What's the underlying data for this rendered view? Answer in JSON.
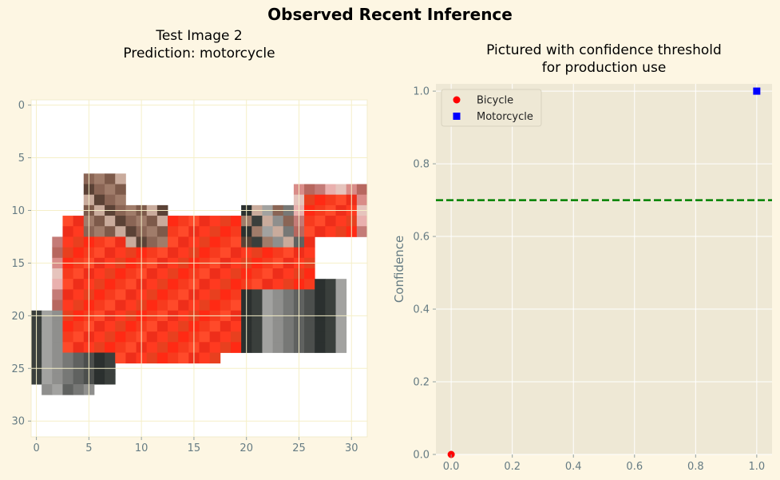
{
  "suptitle": "Observed Recent Inference",
  "left_panel": {
    "title_line1": "Test Image 2",
    "title_line2": "Prediction: motorcycle"
  },
  "right_panel": {
    "title_line1": "Pictured with confidence threshold",
    "title_line2": "for production use"
  },
  "colors": {
    "background": "#fdf6e3",
    "axes_face": "#eee8d5",
    "tick_label": "#657b83",
    "grid": "#ffffff",
    "bicycle": "#ff0000",
    "motorcycle": "#0000ff",
    "threshold": "#008000"
  },
  "chart_data": [
    {
      "type": "heatmap",
      "title": "Test Image 2\nPrediction: motorcycle",
      "image_size": [
        32,
        32
      ],
      "xlim": [
        -0.5,
        31.5
      ],
      "ylim": [
        31.5,
        -0.5
      ],
      "xticks": [
        0,
        5,
        10,
        15,
        20,
        25,
        30
      ],
      "yticks": [
        0,
        5,
        10,
        15,
        20,
        25,
        30
      ],
      "content": "pixelated red motorcycle on white background"
    },
    {
      "type": "scatter",
      "title": "Pictured with confidence threshold\nfor production use",
      "xlabel": "",
      "ylabel": "Confidence",
      "xlim": [
        -0.05,
        1.05
      ],
      "ylim": [
        0,
        1.02
      ],
      "xticks": [
        0.0,
        0.2,
        0.4,
        0.6,
        0.8,
        1.0
      ],
      "yticks": [
        0.0,
        0.2,
        0.4,
        0.6,
        0.8,
        1.0
      ],
      "xtick_labels": [
        "0.0",
        "0.2",
        "0.4",
        "0.6",
        "0.8",
        "1.0"
      ],
      "ytick_labels": [
        "0.0",
        "0.2",
        "0.4",
        "0.6",
        "0.8",
        "1.0"
      ],
      "grid": true,
      "legend_position": "top-left",
      "series": [
        {
          "name": "Bicycle",
          "marker": "circle",
          "color": "#ff0000",
          "x": [
            0.0
          ],
          "y": [
            0.0
          ]
        },
        {
          "name": "Motorcycle",
          "marker": "square",
          "color": "#0000ff",
          "x": [
            1.0
          ],
          "y": [
            1.0
          ]
        }
      ],
      "threshold": {
        "y": 0.7,
        "style": "dashed",
        "color": "#008000"
      }
    }
  ]
}
